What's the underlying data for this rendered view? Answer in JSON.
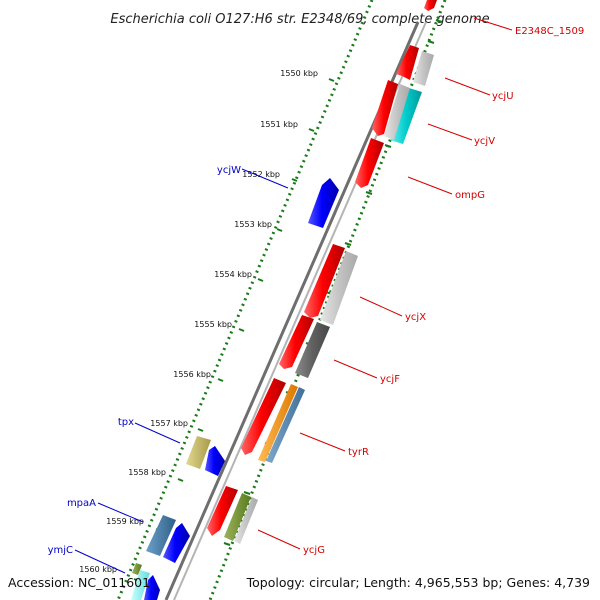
{
  "title": "Escherichia coli O127:H6 str. E2348/69, complete genome",
  "accession": "Accession: NC_011601",
  "summary": "Topology: circular; Length: 4,965,553 bp; Genes: 4,739",
  "colors": {
    "backbone": "#777777",
    "tick_dots": "#1a7a1a",
    "forward_label": "#d40000",
    "reverse_label": "#0000cc"
  },
  "ticks": [
    "1550 kbp",
    "1551 kbp",
    "1552 kbp",
    "1553 kbp",
    "1554 kbp",
    "1555 kbp",
    "1556 kbp",
    "1557 kbp",
    "1558 kbp",
    "1559 kbp",
    "1560 kbp"
  ],
  "genes": [
    {
      "name": "E2348C_1509",
      "strand": "forward",
      "color": "red"
    },
    {
      "name": "ycjU",
      "strand": "forward",
      "color": "red"
    },
    {
      "name": "ycjV",
      "strand": "forward",
      "color": "red"
    },
    {
      "name": "ompG",
      "strand": "forward",
      "color": "red"
    },
    {
      "name": "ycjW",
      "strand": "reverse",
      "color": "blue"
    },
    {
      "name": "ycjX",
      "strand": "forward",
      "color": "red"
    },
    {
      "name": "ycjF",
      "strand": "forward",
      "color": "red"
    },
    {
      "name": "tyrR",
      "strand": "forward",
      "color": "red"
    },
    {
      "name": "tpx",
      "strand": "reverse",
      "color": "blue"
    },
    {
      "name": "ycjG",
      "strand": "forward",
      "color": "red"
    },
    {
      "name": "mpaA",
      "strand": "reverse",
      "color": "blue"
    },
    {
      "name": "ymjC",
      "strand": "reverse",
      "color": "blue"
    }
  ]
}
